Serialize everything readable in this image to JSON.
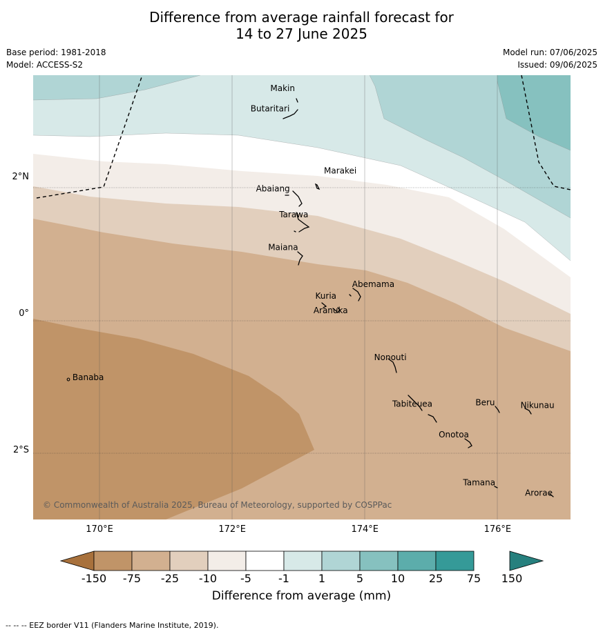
{
  "header": {
    "title_line1": "Difference from average rainfall forecast for",
    "title_line2": "14 to 27 June 2025",
    "base_period": "Base period: 1981-2018",
    "model": "Model: ACCESS-S2",
    "model_run": "Model run: 07/06/2025",
    "issued": "Issued: 09/06/2025"
  },
  "map": {
    "lon_range": [
      169.0,
      177.1
    ],
    "lat_range": [
      -3.0,
      3.5
    ],
    "lon_ticks": [
      {
        "value": 170,
        "label": "170°E"
      },
      {
        "value": 172,
        "label": "172°E"
      },
      {
        "value": 174,
        "label": "174°E"
      },
      {
        "value": 176,
        "label": "176°E"
      }
    ],
    "lat_ticks": [
      {
        "value": 2,
        "label": "2°N"
      },
      {
        "value": 0,
        "label": "0°"
      },
      {
        "value": -2,
        "label": "2°S"
      }
    ],
    "copyright": "© Commonwealth of Australia 2025, Bureau of Meteorology, supported by COSPPac",
    "places": [
      {
        "name": "Makin",
        "lon": 172.95,
        "lat": 3.35
      },
      {
        "name": "Butaritari",
        "lon": 172.85,
        "lat": 3.05
      },
      {
        "name": "Marakei",
        "lon": 173.3,
        "lat": 2.02
      },
      {
        "name": "Abaiang",
        "lon": 172.9,
        "lat": 1.8
      },
      {
        "name": "Tarawa",
        "lon": 173.0,
        "lat": 1.42
      },
      {
        "name": "Maiana",
        "lon": 173.0,
        "lat": 0.94
      },
      {
        "name": "Abemama",
        "lon": 173.87,
        "lat": 0.4
      },
      {
        "name": "Kuria",
        "lon": 173.42,
        "lat": 0.23
      },
      {
        "name": "Aranuka",
        "lon": 173.6,
        "lat": 0.16
      },
      {
        "name": "Nonouti",
        "lon": 174.4,
        "lat": -0.67
      },
      {
        "name": "Banaba",
        "lon": 169.53,
        "lat": -0.87
      },
      {
        "name": "Tabiteuea",
        "lon": 174.83,
        "lat": -1.35
      },
      {
        "name": "Beru",
        "lon": 176.0,
        "lat": -1.33
      },
      {
        "name": "Nikunau",
        "lon": 176.45,
        "lat": -1.37
      },
      {
        "name": "Onotoa",
        "lon": 175.55,
        "lat": -1.8
      },
      {
        "name": "Tamana",
        "lon": 175.98,
        "lat": -2.5
      },
      {
        "name": "Arorae",
        "lon": 176.83,
        "lat": -2.65
      }
    ]
  },
  "colorbar": {
    "title": "Difference from average (mm)",
    "tick_labels": [
      "-150",
      "-75",
      "-25",
      "-10",
      "-5",
      "-1",
      "1",
      "5",
      "10",
      "25",
      "75",
      "150"
    ],
    "colors": [
      "#a8713c",
      "#c09468",
      "#d2b090",
      "#e2cfbd",
      "#f3ede8",
      "#ffffff",
      "#d7e9e8",
      "#b0d5d5",
      "#86c1bf",
      "#5cadab",
      "#359a98",
      "#26807e"
    ]
  },
  "footnote": "--  --  -- EEZ border V11 (Flanders Marine Institute, 2019)."
}
